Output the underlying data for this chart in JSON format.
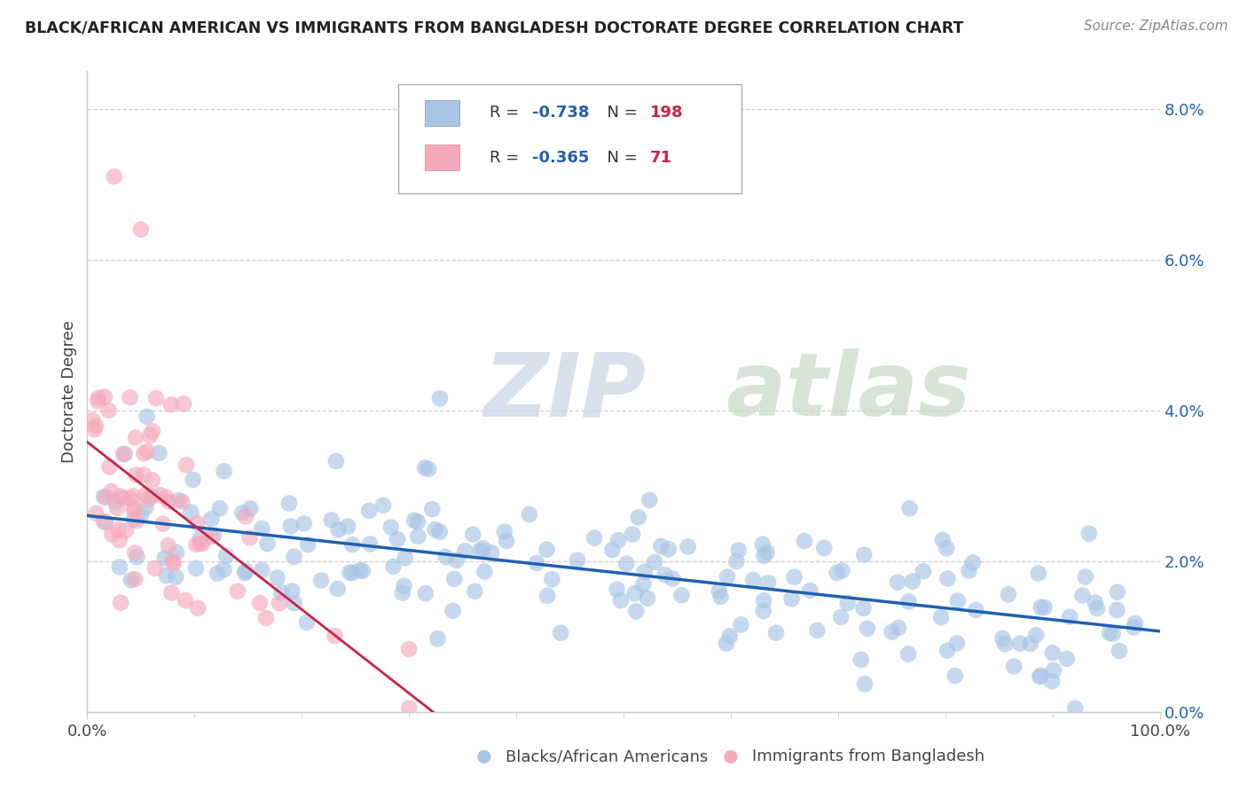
{
  "title": "BLACK/AFRICAN AMERICAN VS IMMIGRANTS FROM BANGLADESH DOCTORATE DEGREE CORRELATION CHART",
  "source": "Source: ZipAtlas.com",
  "ylabel": "Doctorate Degree",
  "blue_R": -0.738,
  "blue_N": 198,
  "pink_R": -0.365,
  "pink_N": 71,
  "blue_color": "#a8c4e5",
  "pink_color": "#f5aabc",
  "blue_line_color": "#2060b0",
  "pink_line_color": "#cc2244",
  "blue_label": "Blacks/African Americans",
  "pink_label": "Immigrants from Bangladesh",
  "xlim": [
    0,
    100
  ],
  "ylim": [
    0,
    8.5
  ],
  "ytick_vals": [
    0,
    2,
    4,
    6,
    8
  ],
  "ytick_labels": [
    "0.0%",
    "2.0%",
    "4.0%",
    "6.0%",
    "8.0%"
  ],
  "xtick_vals": [
    0,
    100
  ],
  "xtick_labels": [
    "0.0%",
    "100.0%"
  ],
  "watermark_zip": "ZIP",
  "watermark_atlas": "atlas",
  "background_color": "#ffffff",
  "legend_text_color": "#333333",
  "legend_R_color": "#2060b0",
  "legend_N_color": "#cc2244",
  "title_color": "#222222",
  "source_color": "#888888",
  "grid_color": "#cccccc",
  "spine_color": "#cccccc"
}
